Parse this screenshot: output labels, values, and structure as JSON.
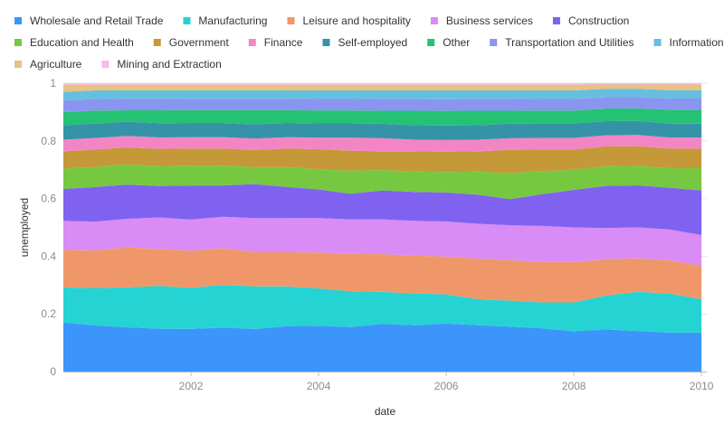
{
  "chart_data": {
    "type": "area",
    "stacked": "normalized",
    "xlabel": "date",
    "ylabel": "unemployed",
    "ylim": [
      0,
      1
    ],
    "y_ticks": [
      0,
      0.2,
      0.4,
      0.6,
      0.8,
      1
    ],
    "y_tick_labels": [
      "0",
      "0.2",
      "0.4",
      "0.6",
      "0.8",
      "1"
    ],
    "x_ticks": [
      2002,
      2004,
      2006,
      2008,
      2010
    ],
    "x_tick_labels": [
      "2002",
      "2004",
      "2006",
      "2008",
      "2010"
    ],
    "xlim": [
      2000.0,
      2010.083
    ],
    "legend_position": "top",
    "dates": [
      "2000",
      "2000.5",
      "2001",
      "2001.5",
      "2002",
      "2002.5",
      "2003",
      "2003.5",
      "2004",
      "2004.5",
      "2005",
      "2005.5",
      "2006",
      "2006.5",
      "2007",
      "2007.5",
      "2008",
      "2008.5",
      "2009",
      "2009.5",
      "2010"
    ],
    "series": [
      {
        "name": "Wholesale and Retail Trade",
        "color": "#3b95fb",
        "values": [
          0.17,
          0.16,
          0.155,
          0.15,
          0.15,
          0.155,
          0.15,
          0.16,
          0.16,
          0.155,
          0.165,
          0.16,
          0.165,
          0.16,
          0.155,
          0.15,
          0.14,
          0.15,
          0.145,
          0.14,
          0.14
        ]
      },
      {
        "name": "Manufacturing",
        "color": "#25d3d3",
        "values": [
          0.12,
          0.13,
          0.14,
          0.15,
          0.145,
          0.15,
          0.15,
          0.14,
          0.13,
          0.125,
          0.11,
          0.11,
          0.1,
          0.09,
          0.09,
          0.09,
          0.1,
          0.12,
          0.14,
          0.14,
          0.12
        ]
      },
      {
        "name": "Leisure and hospitality",
        "color": "#f0976a",
        "values": [
          0.13,
          0.13,
          0.14,
          0.13,
          0.13,
          0.13,
          0.12,
          0.12,
          0.125,
          0.13,
          0.13,
          0.13,
          0.13,
          0.14,
          0.14,
          0.14,
          0.14,
          0.13,
          0.12,
          0.12,
          0.12
        ]
      },
      {
        "name": "Business services",
        "color": "#d98cf5",
        "values": [
          0.1,
          0.1,
          0.1,
          0.11,
          0.11,
          0.11,
          0.12,
          0.12,
          0.12,
          0.12,
          0.12,
          0.12,
          0.12,
          0.12,
          0.12,
          0.125,
          0.12,
          0.11,
          0.11,
          0.11,
          0.11
        ]
      },
      {
        "name": "Construction",
        "color": "#7f62f0",
        "values": [
          0.11,
          0.12,
          0.12,
          0.11,
          0.12,
          0.11,
          0.12,
          0.11,
          0.1,
          0.09,
          0.1,
          0.1,
          0.1,
          0.1,
          0.09,
          0.11,
          0.13,
          0.15,
          0.15,
          0.15,
          0.16
        ]
      },
      {
        "name": "Education and Health",
        "color": "#75c840",
        "values": [
          0.07,
          0.07,
          0.07,
          0.07,
          0.07,
          0.07,
          0.06,
          0.07,
          0.07,
          0.08,
          0.07,
          0.07,
          0.07,
          0.08,
          0.09,
          0.08,
          0.07,
          0.07,
          0.07,
          0.07,
          0.08
        ]
      },
      {
        "name": "Government",
        "color": "#c59838",
        "values": [
          0.06,
          0.06,
          0.06,
          0.06,
          0.06,
          0.06,
          0.06,
          0.065,
          0.07,
          0.07,
          0.065,
          0.07,
          0.07,
          0.07,
          0.08,
          0.075,
          0.07,
          0.07,
          0.07,
          0.07,
          0.07
        ]
      },
      {
        "name": "Finance",
        "color": "#f385c5",
        "values": [
          0.04,
          0.04,
          0.04,
          0.04,
          0.04,
          0.04,
          0.04,
          0.04,
          0.04,
          0.045,
          0.045,
          0.04,
          0.04,
          0.04,
          0.04,
          0.04,
          0.04,
          0.04,
          0.04,
          0.04,
          0.04
        ]
      },
      {
        "name": "Self-employed",
        "color": "#3593a8",
        "values": [
          0.05,
          0.05,
          0.05,
          0.05,
          0.05,
          0.05,
          0.05,
          0.05,
          0.05,
          0.05,
          0.05,
          0.05,
          0.05,
          0.05,
          0.05,
          0.05,
          0.05,
          0.05,
          0.05,
          0.05,
          0.05
        ]
      },
      {
        "name": "Other",
        "color": "#25c274",
        "values": [
          0.045,
          0.045,
          0.04,
          0.045,
          0.045,
          0.045,
          0.05,
          0.045,
          0.045,
          0.045,
          0.045,
          0.05,
          0.05,
          0.05,
          0.045,
          0.045,
          0.045,
          0.045,
          0.045,
          0.05,
          0.05
        ]
      },
      {
        "name": "Transportation and Utilities",
        "color": "#8a95f0",
        "values": [
          0.04,
          0.04,
          0.04,
          0.04,
          0.04,
          0.04,
          0.04,
          0.04,
          0.04,
          0.04,
          0.04,
          0.04,
          0.04,
          0.04,
          0.04,
          0.04,
          0.04,
          0.04,
          0.04,
          0.04,
          0.04
        ]
      },
      {
        "name": "Information",
        "color": "#66bfe0",
        "values": [
          0.03,
          0.03,
          0.03,
          0.03,
          0.03,
          0.03,
          0.03,
          0.03,
          0.03,
          0.03,
          0.03,
          0.03,
          0.03,
          0.03,
          0.03,
          0.03,
          0.03,
          0.03,
          0.03,
          0.03,
          0.03
        ]
      },
      {
        "name": "Agriculture",
        "color": "#e8c280",
        "values": [
          0.025,
          0.02,
          0.02,
          0.02,
          0.02,
          0.02,
          0.02,
          0.02,
          0.02,
          0.02,
          0.02,
          0.02,
          0.02,
          0.02,
          0.02,
          0.02,
          0.02,
          0.015,
          0.015,
          0.02,
          0.02
        ]
      },
      {
        "name": "Mining and Extraction",
        "color": "#f9b8ee",
        "values": [
          0.005,
          0.005,
          0.005,
          0.005,
          0.005,
          0.005,
          0.005,
          0.005,
          0.005,
          0.005,
          0.005,
          0.005,
          0.005,
          0.005,
          0.005,
          0.005,
          0.005,
          0.005,
          0.005,
          0.005,
          0.005
        ]
      }
    ]
  }
}
